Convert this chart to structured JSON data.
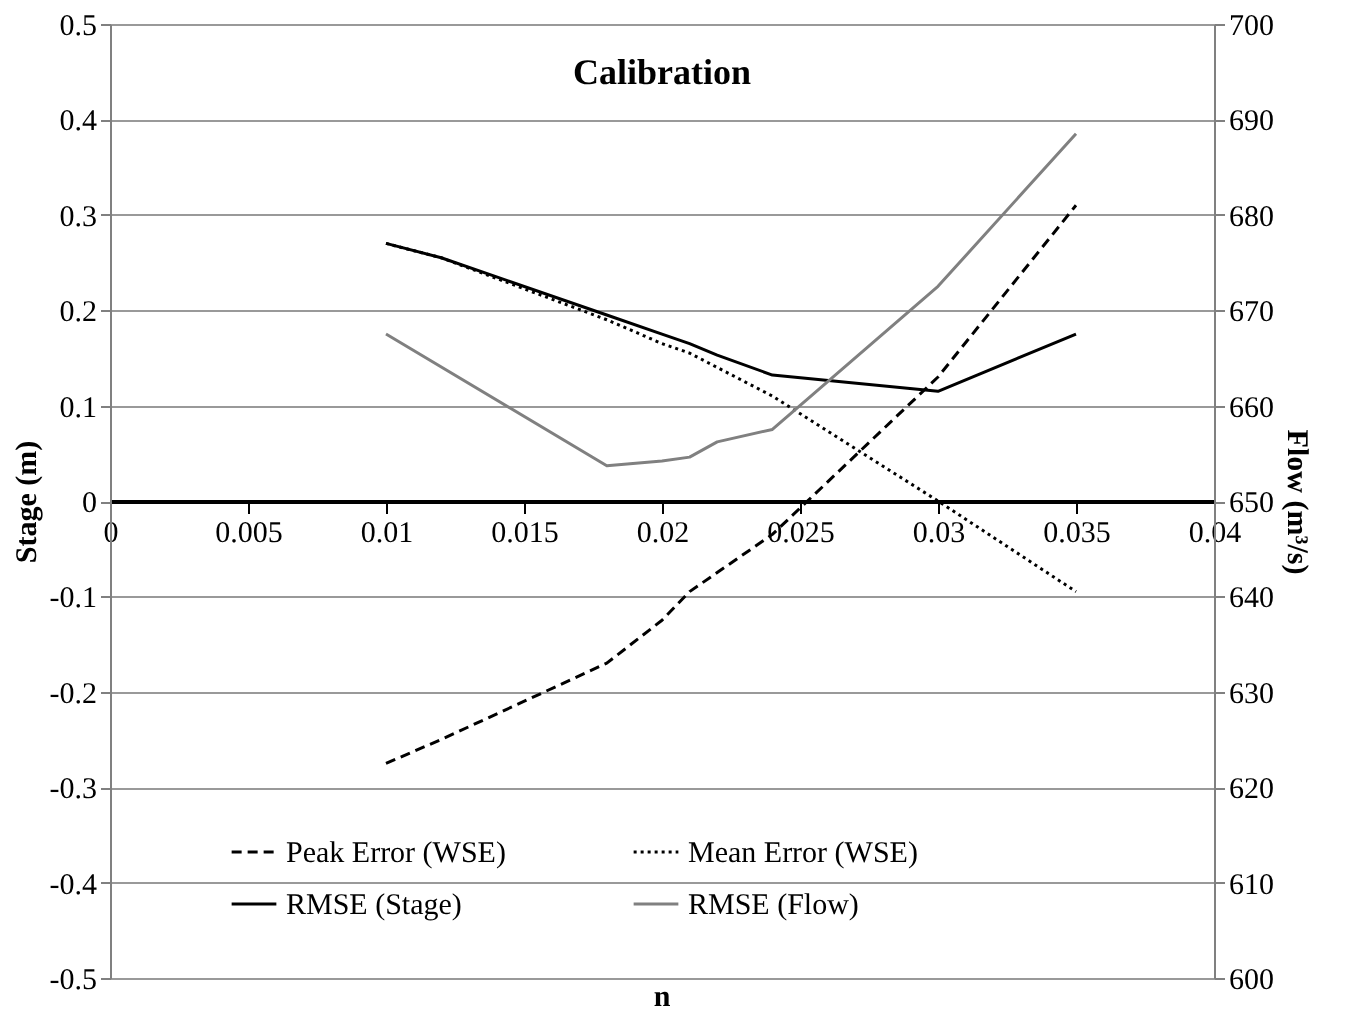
{
  "chart_data": {
    "type": "line",
    "title": "Calibration",
    "xlabel": "n",
    "ylabel": "Stage (m)",
    "y2label": "Flow (m³/s)",
    "x": [
      0.01,
      0.012,
      0.018,
      0.02,
      0.021,
      0.022,
      0.024,
      0.03,
      0.035
    ],
    "series": [
      {
        "name": "Peak Error (WSE)",
        "color": "#000000",
        "line_style": "dashed",
        "values": [
          -0.275,
          -0.25,
          -0.17,
          -0.125,
          -0.095,
          -0.075,
          -0.035,
          0.13,
          0.31
        ]
      },
      {
        "name": "Mean Error (WSE)",
        "color": "#000000",
        "line_style": "dotted",
        "values": [
          0.27,
          0.255,
          0.19,
          0.165,
          0.155,
          0.14,
          0.11,
          0.0,
          -0.095
        ]
      },
      {
        "name": "RMSE (Stage)",
        "color": "#000000",
        "line_style": "solid",
        "values": [
          0.27,
          0.255,
          0.195,
          0.175,
          0.165,
          0.153,
          0.132,
          0.115,
          0.175
        ]
      },
      {
        "name": "RMSE (Flow)",
        "color": "#808080",
        "line_style": "solid",
        "axis": "y2",
        "x": [
          0.01,
          0.018,
          0.02,
          0.021,
          0.022,
          0.024,
          0.03,
          0.035
        ],
        "values": [
          667.5,
          653.7,
          654.2,
          654.6,
          656.2,
          657.5,
          672.5,
          688.5
        ]
      }
    ],
    "xlim": [
      0,
      0.04
    ],
    "xticks": [
      0,
      0.005,
      0.01,
      0.015,
      0.02,
      0.025,
      0.03,
      0.035,
      0.04
    ],
    "ylim": [
      -0.5,
      0.5
    ],
    "yticks": [
      -0.5,
      -0.4,
      -0.3,
      -0.2,
      -0.1,
      0,
      0.1,
      0.2,
      0.3,
      0.4,
      0.5
    ],
    "y2lim": [
      600,
      700
    ],
    "y2ticks": [
      600,
      610,
      620,
      630,
      640,
      650,
      660,
      670,
      680,
      690,
      700
    ],
    "grid": "y",
    "legend": "bottom",
    "marker": "none"
  }
}
